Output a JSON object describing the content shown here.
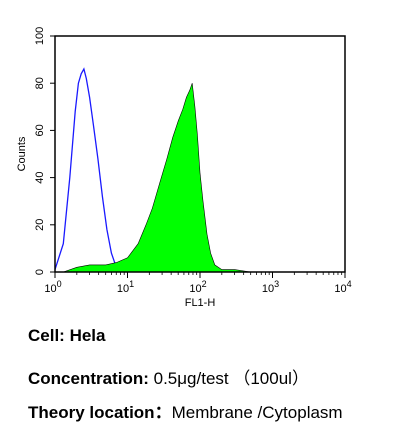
{
  "chart_data": {
    "type": "area",
    "xlabel": "FL1-H",
    "ylabel": "Counts",
    "xscale": "log",
    "xlim": [
      1,
      10000
    ],
    "ylim": [
      0,
      100
    ],
    "grid": false,
    "x_ticks": [
      {
        "base": "10",
        "exp": "0"
      },
      {
        "base": "10",
        "exp": "1"
      },
      {
        "base": "10",
        "exp": "2"
      },
      {
        "base": "10",
        "exp": "3"
      },
      {
        "base": "10",
        "exp": "4"
      }
    ],
    "y_ticks": [
      "0",
      "20",
      "40",
      "60",
      "80",
      "100"
    ],
    "series": [
      {
        "style": "outline",
        "color": "#1a1aff",
        "x": [
          1.0,
          1.3,
          1.6,
          1.9,
          2.1,
          2.3,
          2.5,
          2.7,
          3.0,
          3.4,
          3.9,
          4.5,
          5.2,
          6.0,
          7.0,
          8.0,
          9.0
        ],
        "y": [
          1,
          12,
          40,
          68,
          80,
          84,
          86,
          82,
          74,
          62,
          48,
          32,
          18,
          8,
          2,
          1,
          0
        ]
      },
      {
        "style": "filled",
        "color": "#00ff00",
        "x": [
          1.3,
          2,
          3,
          5,
          7,
          10,
          14,
          18,
          22,
          28,
          35,
          42,
          50,
          58,
          65,
          72,
          78,
          85,
          92,
          100,
          110,
          125,
          140,
          160,
          200,
          300,
          500,
          1000,
          2000,
          5000,
          10000
        ],
        "y": [
          0,
          2,
          3,
          3,
          4,
          6,
          12,
          20,
          27,
          38,
          48,
          57,
          64,
          69,
          74,
          77,
          80,
          70,
          58,
          42,
          30,
          16,
          8,
          3,
          1,
          1,
          0,
          0,
          0,
          0,
          0
        ]
      }
    ]
  },
  "info": {
    "cell_key": "Cell:",
    "cell_val": "Hela",
    "conc_key": "Concentration:",
    "conc_val": " 0.5μg/test （100ul）",
    "theory_key": "Theory location：",
    "theory_val": "Membrane /Cytoplasm"
  }
}
